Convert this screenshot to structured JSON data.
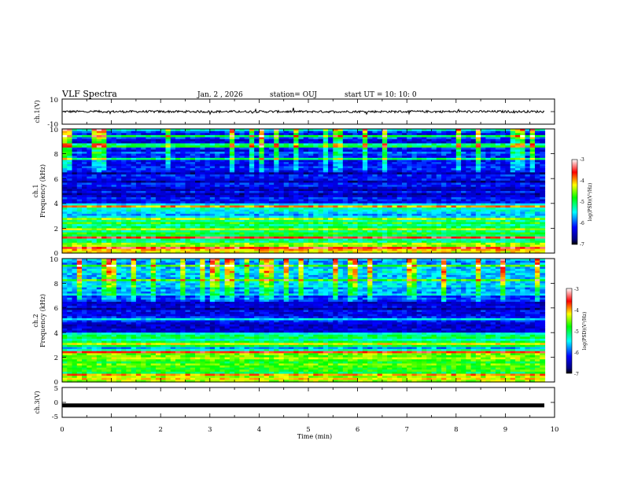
{
  "header": {
    "title": "VLF Spectra",
    "date": "Jan. 2 , 2026",
    "station": "station= OUJ",
    "start_ut": "start UT =  10: 10: 0"
  },
  "chart_data": [
    {
      "type": "line",
      "name": "ch1-waveform",
      "ylabel": "ch.1(V)",
      "ylim": [
        -10,
        10
      ],
      "yticks": [
        "10",
        "-10"
      ],
      "xlim": [
        0,
        10
      ],
      "baseline": 0,
      "color": "#000000"
    },
    {
      "type": "heatmap",
      "name": "ch1-spectrogram",
      "ylabel_top": "ch.1",
      "ylabel": "Frequency (kHz)",
      "ylim": [
        0,
        10
      ],
      "yticks": [
        "0",
        "2",
        "4",
        "6",
        "8",
        "10"
      ],
      "xlim": [
        0,
        9.8
      ],
      "colorbar": {
        "label": "log(PSD)(V²/Hz)",
        "range": [
          -7,
          -3
        ],
        "ticks": [
          "-3",
          "-4",
          "-5",
          "-6",
          "-7"
        ]
      }
    },
    {
      "type": "heatmap",
      "name": "ch2-spectrogram",
      "ylabel_top": "ch.2",
      "ylabel": "Frequency (kHz)",
      "ylim": [
        0,
        10
      ],
      "yticks": [
        "0",
        "2",
        "4",
        "6",
        "8",
        "10"
      ],
      "xlim": [
        0,
        9.8
      ],
      "colorbar": {
        "label": "log(PSD)(V²/Hz)",
        "range": [
          -7,
          -3
        ],
        "ticks": [
          "-3",
          "-4",
          "-5",
          "-6",
          "-7"
        ]
      }
    },
    {
      "type": "line",
      "name": "ch3-waveform",
      "ylabel": "ch.3(V)",
      "ylim": [
        -5,
        5
      ],
      "yticks": [
        "5",
        "0",
        "-5"
      ],
      "xlim": [
        0,
        10
      ],
      "baseline": -1,
      "color": "#000000"
    }
  ],
  "x_axis": {
    "label": "Time (min)",
    "ticks": [
      "0",
      "1",
      "2",
      "3",
      "4",
      "5",
      "6",
      "7",
      "8",
      "9",
      "10"
    ]
  },
  "colors": {
    "low": "#00007f",
    "mid": "#00ffff",
    "high": "#ff0000",
    "top": "#ffffff"
  }
}
